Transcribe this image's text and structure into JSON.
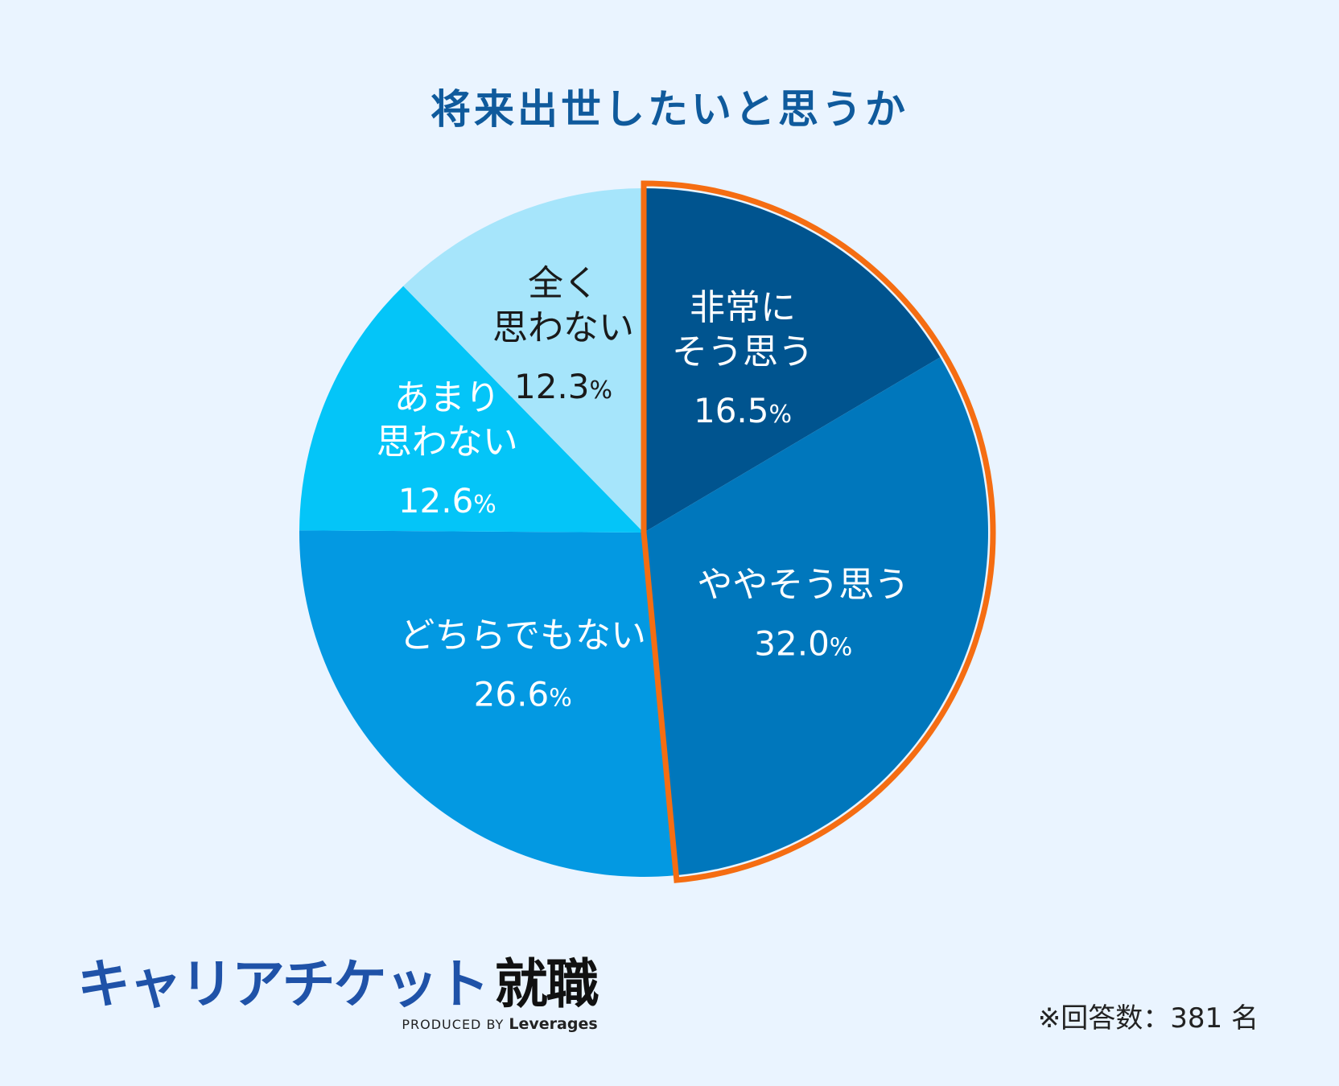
{
  "chart_data": {
    "type": "pie",
    "title": "将来出世したいと思うか",
    "unit": "%",
    "start": "12 o'clock, clockwise",
    "slices": [
      {
        "label_lines": [
          "非常に",
          "そう思う"
        ],
        "label": "非常にそう思う",
        "value": 16.5,
        "color": "#00548f",
        "text_color": "#ffffff",
        "highlighted": true
      },
      {
        "label_lines": [
          "ややそう思う"
        ],
        "label": "ややそう思う",
        "value": 32.0,
        "color": "#0077bc",
        "text_color": "#ffffff",
        "highlighted": true
      },
      {
        "label_lines": [
          "どちらでもない"
        ],
        "label": "どちらでもない",
        "value": 26.6,
        "color": "#0399e2",
        "text_color": "#ffffff",
        "highlighted": false
      },
      {
        "label_lines": [
          "あまり",
          "思わない"
        ],
        "label": "あまり思わない",
        "value": 12.6,
        "color": "#04c5f8",
        "text_color": "#ffffff",
        "highlighted": false
      },
      {
        "label_lines": [
          "全く",
          "思わない"
        ],
        "label": "全く思わない",
        "value": 12.3,
        "color": "#a6e5fb",
        "text_color": "#1a1a1a",
        "highlighted": false
      }
    ],
    "highlight_outline_color": "#f56d12"
  },
  "brand": {
    "name": "キャリアチケット",
    "name_kanji": "就職",
    "sub_prefix": "PRODUCED BY",
    "sub_brand": "Leverages"
  },
  "note": "※回答数：381 名"
}
